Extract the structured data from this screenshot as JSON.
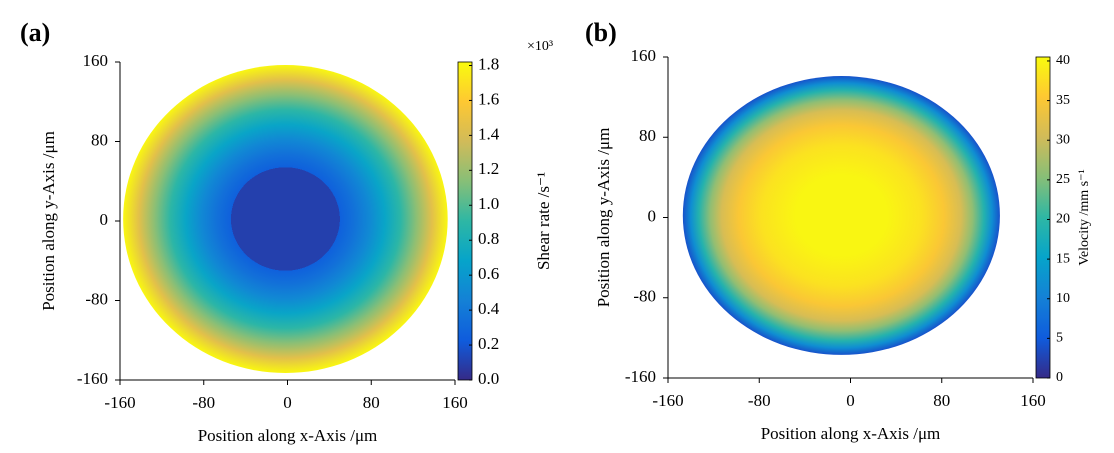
{
  "chart_data": [
    {
      "type": "heatmap",
      "panel_label": "(a)",
      "xlabel": "Position along x-Axis /μm",
      "ylabel": "Position along y-Axis /μm",
      "xlim": [
        -160,
        160
      ],
      "ylim": [
        -160,
        160
      ],
      "xticks": [
        -160,
        -80,
        0,
        80,
        160
      ],
      "yticks": [
        -160,
        -80,
        0,
        80,
        160
      ],
      "center": [
        -2,
        2
      ],
      "radii": [
        0,
        52,
        52,
        65,
        80,
        95,
        110,
        125,
        140,
        155
      ],
      "values": [
        0.1,
        0.1,
        0.25,
        0.35,
        0.5,
        0.7,
        0.9,
        1.15,
        1.45,
        1.8
      ],
      "colormap": [
        "#352a87",
        "#0f5cdd",
        "#1481d6",
        "#06a4ca",
        "#2eb7a4",
        "#87bf77",
        "#d1bb59",
        "#fec832",
        "#f9fb0e"
      ],
      "colorbar": {
        "label": "Shear rate /s⁻¹",
        "multiplier": "×10³",
        "lim": [
          0,
          1.82
        ],
        "ticks": [
          {
            "value": 0,
            "label": "0.0"
          },
          0.2,
          0.4,
          0.6,
          0.8,
          {
            "value": 1,
            "label": "1.0"
          },
          1.2,
          1.4,
          1.6,
          1.8
        ]
      }
    },
    {
      "type": "heatmap",
      "panel_label": "(b)",
      "xlabel": "Position along x-Axis /μm",
      "ylabel": "Position along y-Axis /μm",
      "xlim": [
        -160,
        160
      ],
      "ylim": [
        -160,
        160
      ],
      "xticks": [
        -160,
        -80,
        0,
        80,
        160
      ],
      "yticks": [
        -160,
        -80,
        0,
        80,
        160
      ],
      "center": [
        -8,
        2
      ],
      "radii": [
        0,
        40,
        70,
        90,
        105,
        115,
        125,
        132,
        139
      ],
      "values": [
        40,
        40,
        38,
        35,
        31,
        26,
        19,
        12,
        4
      ],
      "colormap": [
        "#352a87",
        "#0f5cdd",
        "#1481d6",
        "#06a4ca",
        "#2eb7a4",
        "#87bf77",
        "#d1bb59",
        "#fec832",
        "#f9fb0e"
      ],
      "colorbar": {
        "label": "Velocity /mm s⁻¹",
        "lim": [
          0,
          40.5
        ],
        "ticks": [
          0,
          5,
          10,
          15,
          20,
          25,
          30,
          35,
          40
        ]
      }
    }
  ]
}
